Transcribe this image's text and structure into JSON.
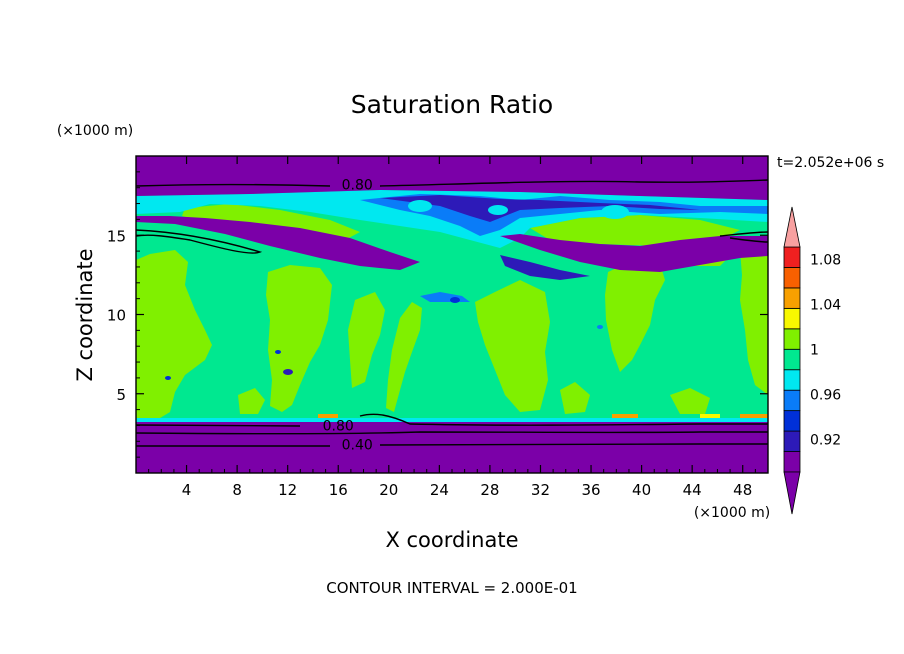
{
  "chart_data": {
    "type": "heatmap",
    "title": "Saturation Ratio",
    "xlabel": "X coordinate",
    "ylabel": "Z coordinate",
    "x_unit": "(×1000 m)",
    "y_unit": "(×1000 m)",
    "time_label": "t=2.052e+06 s",
    "footer": "CONTOUR INTERVAL = 2.000E-01",
    "xlim": [
      0,
      50
    ],
    "ylim": [
      0,
      20
    ],
    "x_ticks": [
      4,
      8,
      12,
      16,
      20,
      24,
      28,
      32,
      36,
      40,
      44,
      48
    ],
    "y_ticks": [
      5,
      10,
      15
    ],
    "x_tick_labels": [
      "4",
      "8",
      "12",
      "16",
      "20",
      "24",
      "28",
      "32",
      "36",
      "40",
      "44",
      "48"
    ],
    "y_tick_labels": [
      "5",
      "10",
      "15"
    ],
    "contour_labels": [
      {
        "text": "0.80",
        "x": 17.5,
        "z": 18.2
      },
      {
        "text": "0.80",
        "x": 16.0,
        "z": 3.0
      },
      {
        "text": "0.40",
        "x": 17.5,
        "z": 1.8
      }
    ],
    "colorbar": {
      "levels": [
        0.9,
        0.92,
        0.94,
        0.96,
        0.98,
        1.0,
        1.02,
        1.04,
        1.06,
        1.08,
        1.1
      ],
      "tick_labels": [
        "0.92",
        "0.96",
        "1",
        "1.04",
        "1.08"
      ],
      "tick_values": [
        0.92,
        0.96,
        1.0,
        1.04,
        1.08
      ],
      "colors": [
        "#7b00a8",
        "#2d1ab8",
        "#0030d8",
        "#0a7cf8",
        "#00e8f0",
        "#00e890",
        "#80f000",
        "#f8f800",
        "#f8a000",
        "#f86000",
        "#f02020"
      ],
      "below_color": "#7b00a8",
      "above_color": "#f8a0a0"
    },
    "colors": {
      "purple": "#7b00a8",
      "deep_blue": "#2d1ab8",
      "blue": "#0030d8",
      "light_blue": "#0a7cf8",
      "cyan": "#00e8f0",
      "green": "#00e890",
      "lime": "#80f000",
      "yellow": "#f8f800",
      "orange": "#f8a000"
    }
  }
}
